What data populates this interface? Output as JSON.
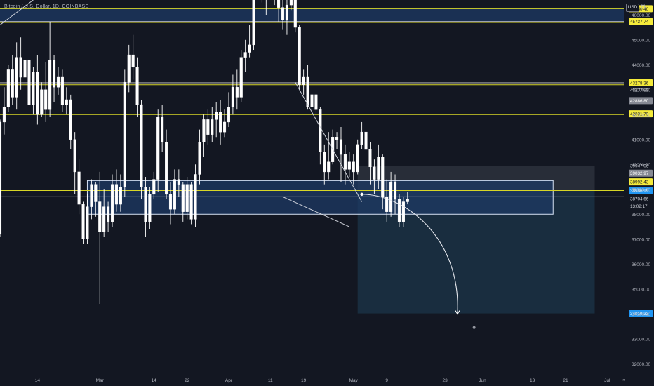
{
  "header": {
    "symbol_title": "Bitcoin / U.S. Dollar, 1D, COINBASE",
    "currency_label": "USD",
    "settings_icon": "gear-icon"
  },
  "colors": {
    "background": "#131722",
    "up_candle": "#ffffff",
    "down_candle": "#ffffff",
    "level_line": "#d8d626",
    "zone_fill": "#1e3a64",
    "target_box": "#1b3144",
    "label_yellow": "#f5eb3b",
    "label_gray": "#868993",
    "label_blue": "#2196f3",
    "axis_text": "#b2b5be"
  },
  "chart_data": {
    "type": "candlestick",
    "x_type": "date",
    "x_range": [
      "2022-02-05",
      "2022-07-05"
    ],
    "y_range": [
      31500,
      46600
    ],
    "y_ticks": [
      "46000.00",
      "45000.00",
      "44000.00",
      "43000.00",
      "42000.00",
      "41000.00",
      "40000.00",
      "39000.00",
      "38000.00",
      "37000.00",
      "36000.00",
      "35000.00",
      "34000.00",
      "33000.00",
      "32000.00"
    ],
    "x_ticks": [
      {
        "date": "2022-02-14",
        "label": "14"
      },
      {
        "date": "2022-03-01",
        "label": "Mar"
      },
      {
        "date": "2022-03-14",
        "label": "14"
      },
      {
        "date": "2022-03-22",
        "label": "22"
      },
      {
        "date": "2022-04-01",
        "label": "Apr"
      },
      {
        "date": "2022-04-11",
        "label": "11"
      },
      {
        "date": "2022-04-19",
        "label": "19"
      },
      {
        "date": "2022-05-01",
        "label": "May"
      },
      {
        "date": "2022-05-09",
        "label": "9"
      },
      {
        "date": "2022-05-23",
        "label": "23"
      },
      {
        "date": "2022-06-01",
        "label": "Jun"
      },
      {
        "date": "2022-06-13",
        "label": "13"
      },
      {
        "date": "2022-06-21",
        "label": "21"
      },
      {
        "date": "2022-07-01",
        "label": "Jul"
      }
    ],
    "first_candle_date": "2022-02-05",
    "candles": [
      [
        37200,
        41700,
        37100,
        41800
      ],
      [
        41700,
        42300,
        41200,
        43100
      ],
      [
        42300,
        43800,
        42100,
        44000
      ],
      [
        43800,
        42700,
        42400,
        44400
      ],
      [
        42700,
        44300,
        42200,
        44900
      ],
      [
        44300,
        43500,
        43000,
        45100
      ],
      [
        43500,
        44200,
        43300,
        45400
      ],
      [
        44200,
        42400,
        42200,
        44400
      ],
      [
        42400,
        43700,
        42000,
        43900
      ],
      [
        43700,
        42000,
        41600,
        44400
      ],
      [
        42000,
        43000,
        41900,
        43300
      ],
      [
        43000,
        42200,
        41700,
        44100
      ],
      [
        42200,
        44200,
        41900,
        45700
      ],
      [
        44200,
        43100,
        42500,
        44400
      ],
      [
        43100,
        43500,
        42800,
        43900
      ],
      [
        43500,
        42400,
        42100,
        43800
      ],
      [
        42400,
        42600,
        42000,
        43100
      ],
      [
        42600,
        41000,
        40600,
        42800
      ],
      [
        41000,
        39700,
        38800,
        41300
      ],
      [
        39700,
        38400,
        38000,
        40200
      ],
      [
        38400,
        37000,
        36800,
        38500
      ],
      [
        37000,
        38300,
        36800,
        38800
      ],
      [
        38300,
        39200,
        37800,
        39400
      ],
      [
        39200,
        38500,
        37900,
        39300
      ],
      [
        38500,
        37300,
        34400,
        39700
      ],
      [
        37300,
        38300,
        37100,
        39000
      ],
      [
        38300,
        37700,
        37300,
        38500
      ],
      [
        37700,
        39200,
        37500,
        39600
      ],
      [
        39200,
        38400,
        38100,
        39800
      ],
      [
        38400,
        39100,
        38100,
        39600
      ],
      [
        39100,
        43300,
        38700,
        43800
      ],
      [
        43300,
        44400,
        42900,
        44800
      ],
      [
        44400,
        43900,
        43400,
        45200
      ],
      [
        43900,
        42400,
        41900,
        44300
      ],
      [
        42400,
        39100,
        38600,
        42600
      ],
      [
        39100,
        37700,
        37100,
        39500
      ],
      [
        37700,
        38800,
        37400,
        39100
      ],
      [
        38800,
        39400,
        38600,
        39700
      ],
      [
        39400,
        41900,
        38900,
        42200
      ],
      [
        41900,
        40900,
        40500,
        42400
      ],
      [
        40900,
        38800,
        38600,
        41400
      ],
      [
        38800,
        38200,
        37600,
        39300
      ],
      [
        38200,
        39400,
        38000,
        39800
      ],
      [
        39400,
        39200,
        38700,
        39800
      ],
      [
        39200,
        38100,
        37700,
        39300
      ],
      [
        38100,
        39200,
        37800,
        39500
      ],
      [
        39200,
        37800,
        37600,
        39300
      ],
      [
        37800,
        39600,
        37500,
        40000
      ],
      [
        39600,
        40900,
        39200,
        41400
      ],
      [
        40900,
        41800,
        40300,
        42000
      ],
      [
        41800,
        41200,
        40800,
        42200
      ],
      [
        41200,
        41800,
        40900,
        42300
      ],
      [
        41800,
        42100,
        41100,
        42500
      ],
      [
        42100,
        41300,
        40800,
        42600
      ],
      [
        41300,
        41700,
        41100,
        42200
      ],
      [
        41700,
        42300,
        41500,
        42900
      ],
      [
        42300,
        43100,
        42000,
        43600
      ],
      [
        43100,
        42700,
        42200,
        43800
      ],
      [
        42700,
        44300,
        42500,
        44600
      ],
      [
        44300,
        44500,
        43700,
        45000
      ],
      [
        44500,
        44800,
        44300,
        45600
      ],
      [
        44800,
        46800,
        44600,
        47000
      ],
      [
        46800,
        47100,
        46600,
        47500
      ],
      [
        47100,
        47400,
        46500,
        48200
      ],
      [
        47400,
        47000,
        46000,
        47800
      ],
      [
        47000,
        47300,
        46700,
        47600
      ],
      [
        47300,
        47100,
        46400,
        48000
      ],
      [
        47100,
        46300,
        45700,
        47300
      ],
      [
        46300,
        45800,
        45400,
        47000
      ],
      [
        45800,
        46400,
        45200,
        46800
      ],
      [
        46400,
        46600,
        46200,
        47200
      ],
      [
        46600,
        45500,
        45300,
        47000
      ],
      [
        45500,
        43200,
        43000,
        45600
      ],
      [
        43200,
        43500,
        42800,
        43800
      ],
      [
        43500,
        42300,
        42200,
        44000
      ],
      [
        42300,
        42800,
        41900,
        43400
      ],
      [
        42800,
        42200,
        41900,
        42700
      ],
      [
        42200,
        40500,
        40000,
        42300
      ],
      [
        40500,
        39700,
        39200,
        40800
      ],
      [
        39700,
        40100,
        39400,
        41300
      ],
      [
        40100,
        41100,
        40000,
        41400
      ],
      [
        41100,
        41000,
        40600,
        41300
      ],
      [
        41000,
        40400,
        39300,
        41500
      ],
      [
        40400,
        39800,
        39200,
        40800
      ],
      [
        39800,
        40100,
        39500,
        40500
      ],
      [
        40100,
        39700,
        39200,
        40400
      ],
      [
        39700,
        40800,
        39600,
        41000
      ],
      [
        40800,
        41300,
        40600,
        41700
      ],
      [
        41300,
        40600,
        40200,
        41700
      ],
      [
        40600,
        39900,
        39200,
        40900
      ],
      [
        39900,
        39400,
        38800,
        40200
      ],
      [
        39400,
        40300,
        39000,
        40800
      ],
      [
        40300,
        38700,
        38200,
        40400
      ],
      [
        38700,
        38100,
        37700,
        39400
      ],
      [
        38100,
        39300,
        37900,
        39700
      ],
      [
        39300,
        38600,
        38000,
        39600
      ],
      [
        38600,
        37700,
        37500,
        38800
      ],
      [
        37700,
        38500,
        37500,
        38700
      ],
      [
        38500,
        38600,
        38400,
        38900
      ]
    ],
    "horizontal_levels": [
      46250,
      45700,
      43200,
      42000,
      38950
    ],
    "gray_levels": [
      45740,
      43278,
      38704
    ],
    "support_zone": {
      "from": "2022-02-26",
      "to": "2022-06-18",
      "top": 39350,
      "bottom": 38000
    },
    "target_box": {
      "from": "2022-05-02",
      "to": "2022-06-28",
      "top": 39947,
      "bottom": 34019
    },
    "trend_lines": [
      {
        "from": [
          "2022-02-05",
          45600
        ],
        "to": [
          "2022-02-13",
          46600
        ]
      },
      {
        "from": [
          "2022-04-14",
          38700
        ],
        "to": [
          "2022-04-30",
          37500
        ]
      },
      {
        "from": [
          "2022-04-17",
          43300
        ],
        "to": [
          "2022-05-03",
          38500
        ]
      }
    ],
    "projection_path": {
      "start": [
        "2022-05-03",
        38800
      ],
      "end": [
        "2022-05-26",
        34019
      ]
    },
    "price_labels": [
      {
        "text": "46250.40",
        "price": 46250,
        "style": "yellow"
      },
      {
        "text": "45737.74",
        "price": 45737,
        "style": "yellow"
      },
      {
        "text": "43278.36",
        "price": 43278,
        "style": "yellow"
      },
      {
        "text": "43277.88",
        "price": 42990,
        "style": "dark"
      },
      {
        "text": "42886.80",
        "price": 42560,
        "style": "gray"
      },
      {
        "text": "42031.79",
        "price": 42031,
        "style": "yellow"
      },
      {
        "text": "39947.06",
        "price": 39947,
        "style": "dark"
      },
      {
        "text": "39032.97",
        "price": 39650,
        "style": "gray"
      },
      {
        "text": "38992.43",
        "price": 39300,
        "style": "yellow"
      },
      {
        "text": "38986.99",
        "price": 38950,
        "style": "blue"
      },
      {
        "text": "38704.66",
        "price": 38620,
        "style": "dark"
      },
      {
        "text": "13:02:17",
        "price": 38330,
        "style": "dark"
      },
      {
        "text": "34019.33",
        "price": 34019,
        "style": "blue"
      }
    ]
  },
  "footer": {
    "goto_label": "»"
  }
}
